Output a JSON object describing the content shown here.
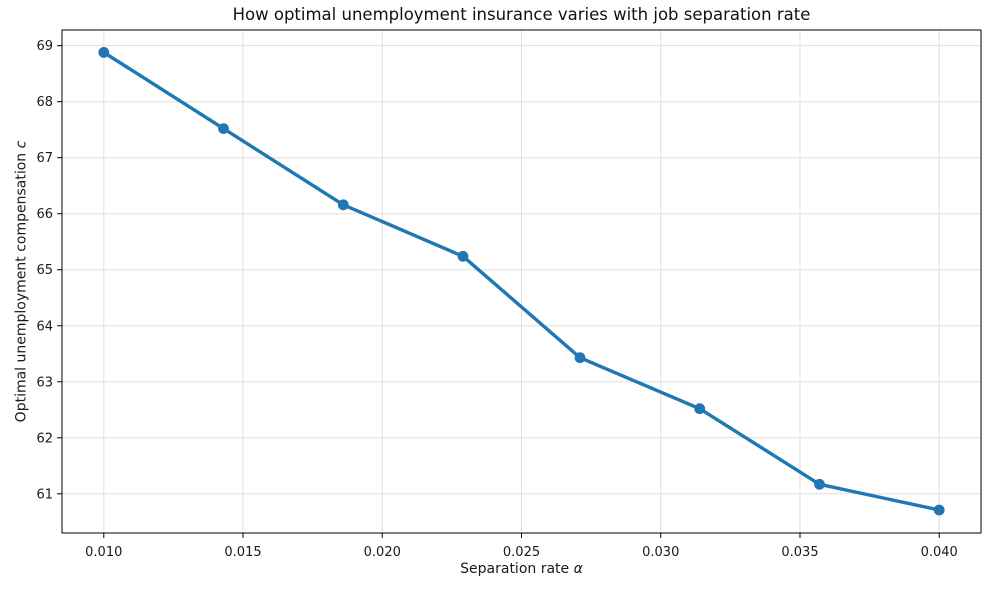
{
  "colors": {
    "line": "#1f77b4",
    "grid": "#dfdfdf",
    "spine": "#000000",
    "text": "#1a1a1a",
    "background": "#ffffff"
  },
  "labels": {
    "xlabel_prefix": "Separation rate ",
    "xlabel_symbol": "α",
    "ylabel_prefix": "Optimal unemployment compensation ",
    "ylabel_symbol": "c"
  },
  "chart_data": {
    "type": "line",
    "title": "How optimal unemployment insurance varies with job separation rate",
    "xlabel": "Separation rate α",
    "ylabel": "Optimal unemployment compensation c",
    "x": [
      0.01,
      0.0143,
      0.0186,
      0.0229,
      0.0271,
      0.0314,
      0.0357,
      0.04
    ],
    "y": [
      68.88,
      67.52,
      66.16,
      65.24,
      63.43,
      62.52,
      61.17,
      60.71
    ],
    "x_ticks": [
      0.01,
      0.015,
      0.02,
      0.025,
      0.03,
      0.035,
      0.04
    ],
    "x_tick_labels": [
      "0.010",
      "0.015",
      "0.020",
      "0.025",
      "0.030",
      "0.035",
      "0.040"
    ],
    "y_ticks": [
      61,
      62,
      63,
      64,
      65,
      66,
      67,
      68,
      69
    ],
    "y_tick_labels": [
      "61",
      "62",
      "63",
      "64",
      "65",
      "66",
      "67",
      "68",
      "69"
    ],
    "xlim": [
      0.0085,
      0.0415
    ],
    "ylim": [
      60.3,
      69.28
    ],
    "grid": true,
    "legend": false,
    "marker": "circle",
    "line_color": "#1f77b4",
    "line_width": 3.4,
    "marker_radius": 5.4
  }
}
